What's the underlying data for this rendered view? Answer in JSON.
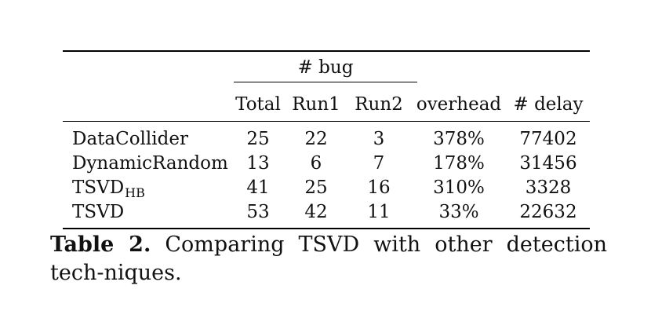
{
  "table": {
    "group_header": "# bug",
    "columns": [
      "Total",
      "Run1",
      "Run2",
      "overhead",
      "# delay"
    ],
    "rows": [
      {
        "name": "DataCollider",
        "name_sub": "",
        "total": "25",
        "run1": "22",
        "run2": "3",
        "overhead": "378%",
        "delay": "77402"
      },
      {
        "name": "DynamicRandom",
        "name_sub": "",
        "total": "13",
        "run1": "6",
        "run2": "7",
        "overhead": "178%",
        "delay": "31456"
      },
      {
        "name": "TSVD",
        "name_sub": "HB",
        "total": "41",
        "run1": "25",
        "run2": "16",
        "overhead": "310%",
        "delay": "3328"
      },
      {
        "name": "TSVD",
        "name_sub": "",
        "total": "53",
        "run1": "42",
        "run2": "11",
        "overhead": "33%",
        "delay": "22632"
      }
    ]
  },
  "caption": {
    "label": "Table 2.",
    "text": "Comparing TSVD with other detection tech-niques."
  }
}
